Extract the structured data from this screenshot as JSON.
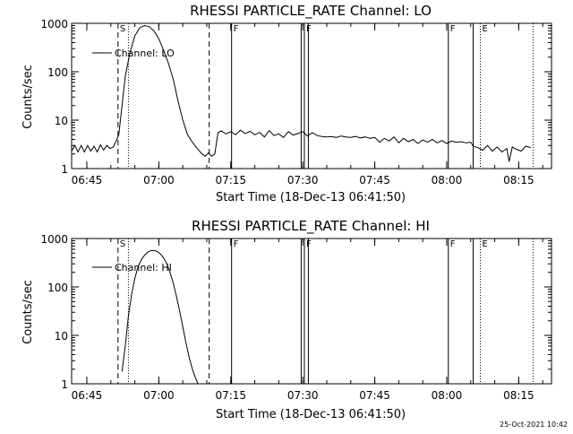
{
  "footer": {
    "timestamp": "25-Oct-2021 10:42"
  },
  "chart_data": [
    {
      "type": "line",
      "title": "RHESSI PARTICLE_RATE Channel: LO",
      "xlabel": "Start Time (18-Dec-13 06:41:50)",
      "ylabel": "Counts/sec",
      "xlim": [
        "06:41:50",
        "08:21:50"
      ],
      "ylim": [
        1,
        1000
      ],
      "yscale": "log",
      "grid": false,
      "xticks": [
        "06:45",
        "07:00",
        "07:15",
        "07:30",
        "07:45",
        "08:00",
        "08:15"
      ],
      "yticks": [
        "1",
        "10",
        "100",
        "1000"
      ],
      "legend": {
        "position": "top-left",
        "entries": [
          "Channel: LO"
        ]
      },
      "flags": [
        {
          "time": "06:51:30",
          "label": "S",
          "style": "dashed"
        },
        {
          "time": "06:53:40",
          "label": "",
          "style": "dotted"
        },
        {
          "time": "07:10:30",
          "label": "",
          "style": "dashed"
        },
        {
          "time": "07:15:10",
          "label": "F",
          "style": "solid"
        },
        {
          "time": "07:29:40",
          "label": "",
          "style": "solid"
        },
        {
          "time": "07:30:20",
          "label": "F",
          "style": "solid"
        },
        {
          "time": "07:31:10",
          "label": "",
          "style": "solid"
        },
        {
          "time": "08:00:20",
          "label": "F",
          "style": "solid"
        },
        {
          "time": "08:05:30",
          "label": "",
          "style": "solid"
        },
        {
          "time": "08:07:00",
          "label": "E",
          "style": "dotted"
        },
        {
          "time": "08:18:00",
          "label": "",
          "style": "dotted"
        }
      ],
      "series": [
        {
          "name": "Channel: LO",
          "x": [
            "06:41:50",
            "06:42:30",
            "06:43:10",
            "06:43:50",
            "06:44:30",
            "06:45:10",
            "06:45:50",
            "06:46:30",
            "06:47:10",
            "06:47:50",
            "06:48:30",
            "06:49:10",
            "06:49:50",
            "06:50:30",
            "06:51:00",
            "06:51:40",
            "06:52:20",
            "06:53:00",
            "06:54:00",
            "06:55:00",
            "06:56:00",
            "06:57:00",
            "06:58:00",
            "06:59:00",
            "07:00:00",
            "07:01:00",
            "07:02:00",
            "07:03:00",
            "07:04:00",
            "07:05:00",
            "07:06:00",
            "07:07:00",
            "07:08:00",
            "07:09:00",
            "07:09:40",
            "07:10:20",
            "07:11:00",
            "07:11:40",
            "07:12:20",
            "07:13:00",
            "07:14:00",
            "07:15:00",
            "07:16:00",
            "07:17:00",
            "07:18:00",
            "07:19:00",
            "07:20:00",
            "07:21:00",
            "07:22:00",
            "07:23:00",
            "07:24:00",
            "07:25:00",
            "07:26:00",
            "07:27:00",
            "07:28:00",
            "07:29:00",
            "07:30:00",
            "07:31:00",
            "07:32:00",
            "07:33:00",
            "07:34:00",
            "07:35:00",
            "07:36:00",
            "07:37:00",
            "07:38:00",
            "07:39:00",
            "07:40:00",
            "07:41:00",
            "07:42:00",
            "07:43:00",
            "07:44:00",
            "07:45:00",
            "07:46:00",
            "07:47:00",
            "07:48:00",
            "07:49:00",
            "07:50:00",
            "07:51:00",
            "07:52:00",
            "07:53:00",
            "07:54:00",
            "07:55:00",
            "07:56:00",
            "07:57:00",
            "07:58:00",
            "07:59:00",
            "08:00:00",
            "08:01:00",
            "08:02:00",
            "08:03:00",
            "08:04:00",
            "08:05:00",
            "08:05:30",
            "08:06:30",
            "08:07:30",
            "08:08:30",
            "08:09:30",
            "08:10:30",
            "08:11:30",
            "08:12:30",
            "08:13:00",
            "08:13:40",
            "08:14:30",
            "08:15:30",
            "08:16:30",
            "08:17:30"
          ],
          "y": [
            2.3,
            3.0,
            2.2,
            3.0,
            2.2,
            3.0,
            2.3,
            2.9,
            2.2,
            3.1,
            2.4,
            3.0,
            2.6,
            2.8,
            3.5,
            5.0,
            20,
            80,
            250,
            550,
            800,
            900,
            850,
            700,
            480,
            280,
            150,
            70,
            25,
            10,
            5,
            3.5,
            2.6,
            2.0,
            1.8,
            2.1,
            1.8,
            2.0,
            5.5,
            6.0,
            5.2,
            5.8,
            5.0,
            6.2,
            5.3,
            5.9,
            5.0,
            5.6,
            4.5,
            6.1,
            4.8,
            5.2,
            4.4,
            5.8,
            4.9,
            5.3,
            5.8,
            4.7,
            5.5,
            4.8,
            4.6,
            4.5,
            4.6,
            4.4,
            4.7,
            4.5,
            4.4,
            4.6,
            4.3,
            4.5,
            4.2,
            4.4,
            3.5,
            4.2,
            3.7,
            4.5,
            3.4,
            4.2,
            3.6,
            4.0,
            3.3,
            3.9,
            3.5,
            4.0,
            3.4,
            3.8,
            3.3,
            3.7,
            3.5,
            3.6,
            3.4,
            3.5,
            2.9,
            2.7,
            2.4,
            3.0,
            2.3,
            2.8,
            2.2,
            2.6,
            1.4,
            2.8,
            2.5,
            2.3,
            2.9,
            2.7
          ]
        }
      ]
    },
    {
      "type": "line",
      "title": "RHESSI PARTICLE_RATE Channel: HI",
      "xlabel": "Start Time (18-Dec-13 06:41:50)",
      "ylabel": "Counts/sec",
      "xlim": [
        "06:41:50",
        "08:21:50"
      ],
      "ylim": [
        1,
        1000
      ],
      "yscale": "log",
      "grid": false,
      "xticks": [
        "06:45",
        "07:00",
        "07:15",
        "07:30",
        "07:45",
        "08:00",
        "08:15"
      ],
      "yticks": [
        "1",
        "10",
        "100",
        "1000"
      ],
      "legend": {
        "position": "top-left",
        "entries": [
          "Channel: HI"
        ]
      },
      "flags": [
        {
          "time": "06:51:30",
          "label": "S",
          "style": "dashed"
        },
        {
          "time": "06:53:40",
          "label": "",
          "style": "dotted"
        },
        {
          "time": "07:10:30",
          "label": "",
          "style": "dashed"
        },
        {
          "time": "07:15:10",
          "label": "F",
          "style": "solid"
        },
        {
          "time": "07:29:40",
          "label": "",
          "style": "solid"
        },
        {
          "time": "07:30:20",
          "label": "F",
          "style": "solid"
        },
        {
          "time": "07:31:10",
          "label": "",
          "style": "solid"
        },
        {
          "time": "08:00:20",
          "label": "F",
          "style": "solid"
        },
        {
          "time": "08:05:30",
          "label": "",
          "style": "solid"
        },
        {
          "time": "08:07:00",
          "label": "E",
          "style": "dotted"
        },
        {
          "time": "08:18:00",
          "label": "",
          "style": "dotted"
        }
      ],
      "series": [
        {
          "name": "Channel: HI",
          "x": [
            "06:52:20",
            "06:53:00",
            "06:53:40",
            "06:54:20",
            "06:55:00",
            "06:55:40",
            "06:56:20",
            "06:57:00",
            "06:57:40",
            "06:58:20",
            "06:59:00",
            "06:59:40",
            "07:00:20",
            "07:01:00",
            "07:01:40",
            "07:02:20",
            "07:03:00",
            "07:03:40",
            "07:04:20",
            "07:05:00",
            "07:05:40",
            "07:06:20",
            "07:07:00",
            "07:07:40",
            "07:08:10"
          ],
          "y": [
            1.8,
            6,
            25,
            70,
            150,
            260,
            360,
            450,
            520,
            560,
            570,
            540,
            480,
            400,
            300,
            200,
            120,
            65,
            32,
            15,
            7,
            3.5,
            2.0,
            1.3,
            1.0
          ]
        }
      ]
    }
  ]
}
